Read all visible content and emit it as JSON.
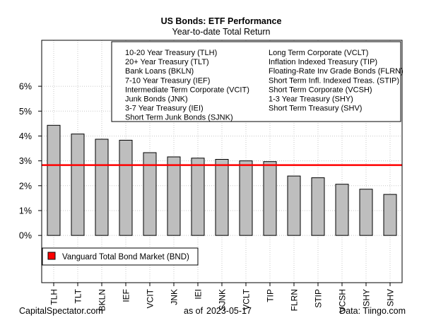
{
  "chart_data": {
    "type": "bar",
    "title": "US Bonds: ETF Performance",
    "subtitle": "Year-to-date Total Return",
    "categories": [
      "TLH",
      "TLT",
      "BKLN",
      "IEF",
      "VCIT",
      "JNK",
      "IEI",
      "SJNK",
      "VCLT",
      "TIP",
      "FLRN",
      "STIP",
      "VCSH",
      "SHY",
      "SHV"
    ],
    "values": [
      4.43,
      4.08,
      3.87,
      3.83,
      3.33,
      3.16,
      3.11,
      3.06,
      3.0,
      2.97,
      2.39,
      2.32,
      2.06,
      1.86,
      1.65
    ],
    "yticks": [
      0,
      1,
      2,
      3,
      4,
      5,
      6
    ],
    "ytick_labels": [
      "0%",
      "1%",
      "2%",
      "3%",
      "4%",
      "5%",
      "6%"
    ],
    "ylim": [
      -1.9,
      7.85
    ],
    "benchmark": {
      "label": "Vanguard Total Bond Market (BND)",
      "value": 2.83,
      "color": "#ff0000"
    },
    "bar_color": "#bebebe",
    "grid": true,
    "legend_position": "top-right",
    "legend_columns": [
      [
        "10-20 Year Treasury (TLH)",
        "20+ Year Treasury (TLT)",
        "Bank Loans (BKLN)",
        "7-10 Year Treasury (IEF)",
        "Intermediate Term Corporate (VCIT)",
        "Junk Bonds (JNK)",
        "3-7 Year Treasury (IEI)",
        "Short Term Junk Bonds (SJNK)"
      ],
      [
        "Long Term Corporate (VCLT)",
        "Inflation Indexed Treasury (TIP)",
        "Floating-Rate Inv Grade Bonds (FLRN)",
        "Short Term Infl. Indexed Treas. (STIP)",
        "Short Term Corporate (VCSH)",
        "1-3 Year Treasury (SHY)",
        "Short Term Treasury (SHV)"
      ]
    ]
  },
  "footer": {
    "source_left": "CapitalSpectator.com",
    "asof_label": "as of",
    "asof_date": "2023-05-17",
    "source_right": "Data: Tiingo.com"
  }
}
